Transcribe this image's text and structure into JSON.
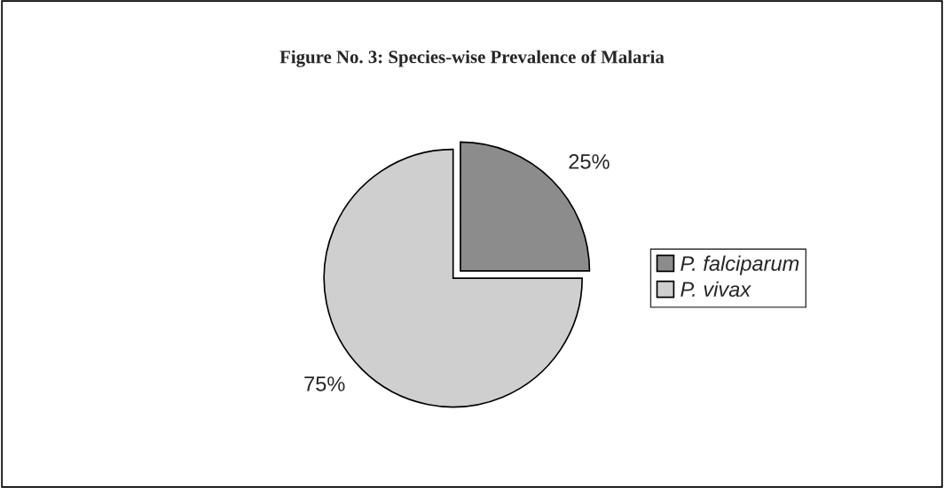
{
  "chart_data": {
    "type": "pie",
    "title": "Figure No. 3: Species-wise Prevalence of Malaria",
    "categories": [
      "P. falciparum",
      "P. vivax"
    ],
    "values": [
      25,
      75
    ],
    "colors": [
      "#8c8c8c",
      "#cfcfcf"
    ],
    "value_labels": [
      "25%",
      "75%"
    ],
    "legend": "right"
  }
}
